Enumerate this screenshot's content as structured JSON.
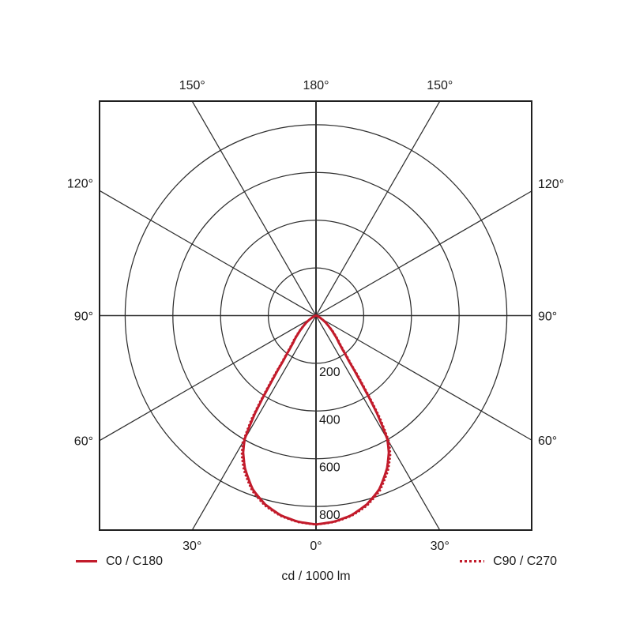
{
  "figure": {
    "kind": "polar photometric light distribution diagram",
    "caption": "cd / 1000 lm"
  },
  "colors": {
    "curve_red": "#c21b2b",
    "grid_line": "#2e2e2e",
    "axis_line": "#1f1f1f",
    "text": "#1a1a1a",
    "background": "#ffffff"
  },
  "chart_data": {
    "type": "line",
    "subtype": "polar_photometric",
    "title": "",
    "units_label": "cd / 1000 lm",
    "grid": "on",
    "angle_ticks_deg": [
      0,
      30,
      60,
      90,
      120,
      150,
      180
    ],
    "angle_tick_labels": [
      "0°",
      "30°",
      "60°",
      "90°",
      "120°",
      "150°",
      "180°"
    ],
    "radial_ticks": [
      200,
      400,
      600,
      800
    ],
    "radial_tick_labels": [
      "200",
      "400",
      "600",
      "800"
    ],
    "radial_axis_max": 900,
    "legend_position": "bottom",
    "series": [
      {
        "name": "C0 / C180",
        "line_style": "solid",
        "color": "#c21b2b",
        "gamma_deg": [
          0,
          5,
          10,
          15,
          20,
          25,
          28,
          30,
          32,
          34,
          36,
          38,
          40,
          45,
          50,
          55,
          60,
          65,
          70,
          75,
          80,
          85,
          90
        ],
        "intensity_cd_per_1000lm": [
          875,
          867,
          850,
          820,
          775,
          705,
          650,
          598,
          482,
          332,
          232,
          182,
          150,
          104,
          69,
          45,
          25,
          15,
          8,
          4,
          2,
          1,
          0
        ]
      },
      {
        "name": "C90 / C270",
        "line_style": "dotted",
        "color": "#c21b2b",
        "gamma_deg": [
          0,
          5,
          10,
          15,
          20,
          25,
          28,
          30,
          32,
          34,
          36,
          38,
          40,
          45,
          50,
          55,
          60,
          65,
          70,
          75,
          80,
          85,
          90
        ],
        "intensity_cd_per_1000lm": [
          876,
          869,
          853,
          825,
          782,
          715,
          663,
          615,
          508,
          358,
          250,
          194,
          160,
          112,
          74,
          48,
          27,
          16,
          9,
          5,
          2,
          1,
          0
        ]
      }
    ]
  }
}
